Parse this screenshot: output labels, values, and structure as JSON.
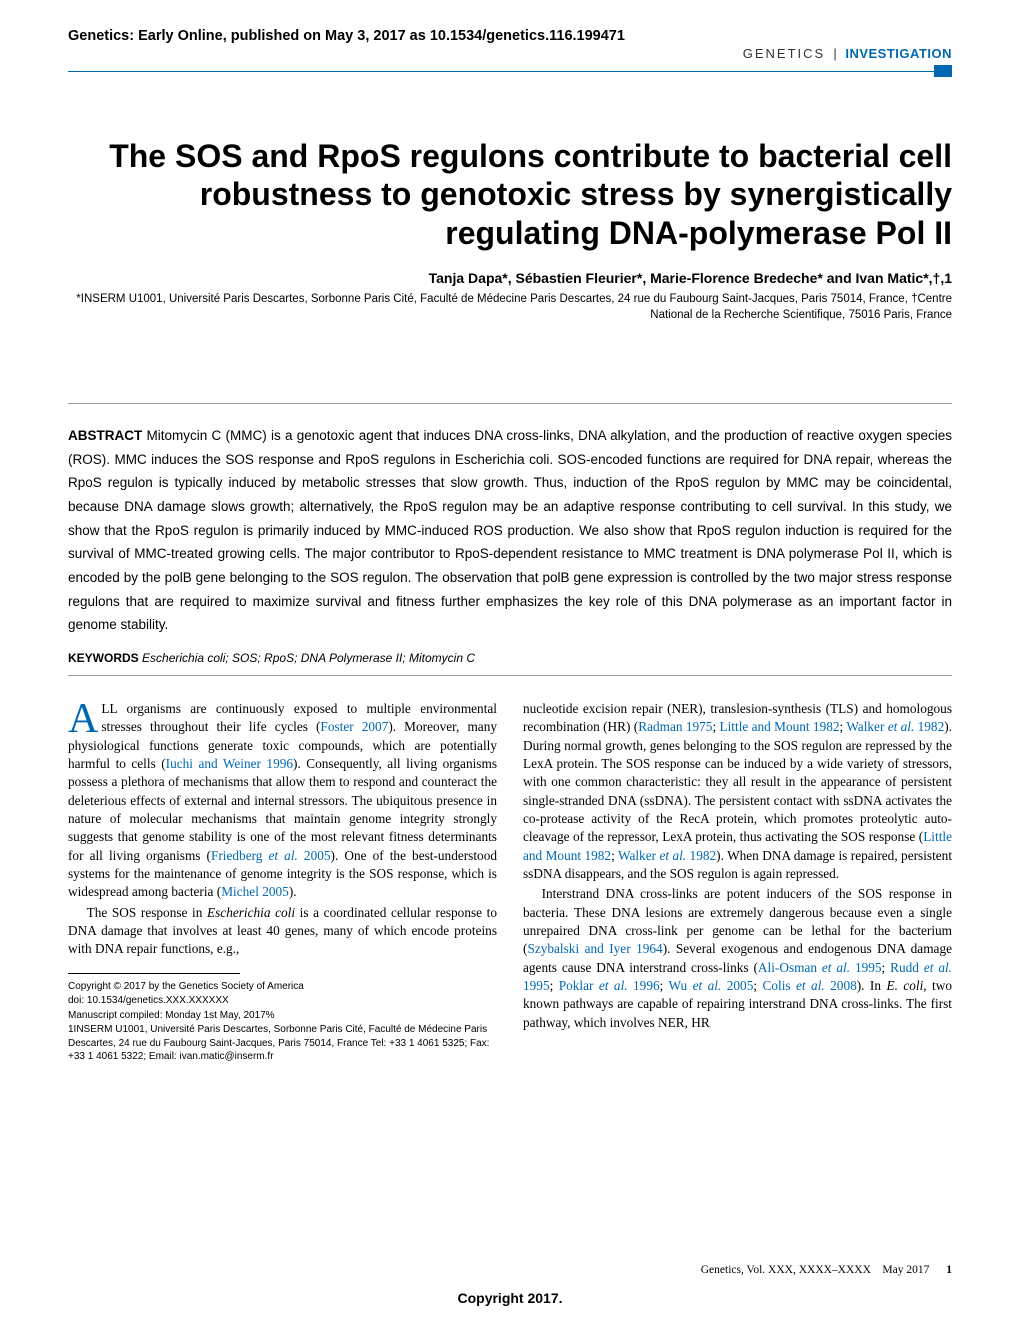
{
  "header": {
    "preprint": "Genetics: Early Online, published on May 3, 2017 as 10.1534/genetics.116.199471",
    "journal": "GENETICS",
    "separator": "|",
    "section": "INVESTIGATION"
  },
  "title": "The SOS and RpoS regulons contribute to bacterial cell robustness to genotoxic stress by synergistically regulating DNA-polymerase Pol II",
  "authors_html": "Tanja Dapa*, Sébastien Fleurier*, Marie-Florence Bredeche* and Ivan Matic*,†,1",
  "affiliations": "*INSERM U1001, Université Paris Descartes, Sorbonne Paris Cité, Faculté de Médecine Paris Descartes, 24 rue du Faubourg Saint-Jacques, Paris 75014, France, †Centre National de la Recherche Scientifique, 75016 Paris, France",
  "abstract": {
    "label": "ABSTRACT",
    "text": "Mitomycin C (MMC) is a genotoxic agent that induces DNA cross-links, DNA alkylation, and the production of reactive oxygen species (ROS). MMC induces the SOS response and RpoS regulons in Escherichia coli. SOS-encoded functions are required for DNA repair, whereas the RpoS regulon is typically induced by metabolic stresses that slow growth. Thus, induction of the RpoS regulon by MMC may be coincidental, because DNA damage slows growth; alternatively, the RpoS regulon may be an adaptive response contributing to cell survival. In this study, we show that the RpoS regulon is primarily induced by MMC-induced ROS production. We also show that RpoS regulon induction is required for the survival of MMC-treated growing cells. The major contributor to RpoS-dependent resistance to MMC treatment is DNA polymerase Pol II, which is encoded by the polB gene belonging to the SOS regulon. The observation that polB gene expression is controlled by the two major stress response regulons that are required to maximize survival and fitness further emphasizes the key role of this DNA polymerase as an important factor in genome stability."
  },
  "keywords": {
    "label": "KEYWORDS",
    "text": "Escherichia coli; SOS; RpoS; DNA Polymerase II; Mitomycin C"
  },
  "body": {
    "col1": {
      "dropcap": "A",
      "p1_rest": "LL organisms are continuously exposed to multiple environmental stresses throughout their life cycles (Foster 2007). Moreover, many physiological functions generate toxic compounds, which are potentially harmful to cells (Iuchi and Weiner 1996). Consequently, all living organisms possess a plethora of mechanisms that allow them to respond and counteract the deleterious effects of external and internal stressors. The ubiquitous presence in nature of molecular mechanisms that maintain genome integrity strongly suggests that genome stability is one of the most relevant fitness determinants for all living organisms (Friedberg et al. 2005). One of the best-understood systems for the maintenance of genome integrity is the SOS response, which is widespread among bacteria (Michel 2005).",
      "p2": "The SOS response in Escherichia coli is a coordinated cellular response to DNA damage that involves at least 40 genes, many of which encode proteins with DNA repair functions, e.g.,"
    },
    "col2": {
      "p1": "nucleotide excision repair (NER), translesion-synthesis (TLS) and homologous recombination (HR) (Radman 1975; Little and Mount 1982; Walker et al. 1982). During normal growth, genes belonging to the SOS regulon are repressed by the LexA protein. The SOS response can be induced by a wide variety of stressors, with one common characteristic: they all result in the appearance of persistent single-stranded DNA (ssDNA). The persistent contact with ssDNA activates the co-protease activity of the RecA protein, which promotes proteolytic auto-cleavage of the repressor, LexA protein, thus activating the SOS response (Little and Mount 1982; Walker et al. 1982). When DNA damage is repaired, persistent ssDNA disappears, and the SOS regulon is again repressed.",
      "p2": "Interstrand DNA cross-links are potent inducers of the SOS response in bacteria. These DNA lesions are extremely dangerous because even a single unrepaired DNA cross-link per genome can be lethal for the bacterium (Szybalski and Iyer 1964). Several exogenous and endogenous DNA damage agents cause DNA interstrand cross-links (Ali-Osman et al. 1995; Rudd et al. 1995; Poklar et al. 1996; Wu et al. 2005; Colis et al. 2008). In E. coli, two known pathways are capable of repairing interstrand DNA cross-links. The first pathway, which involves NER, HR"
    }
  },
  "footnotes": {
    "copyright": "Copyright © 2017 by the Genetics Society of America",
    "doi": "doi: 10.1534/genetics.XXX.XXXXXX",
    "compiled": "Manuscript compiled: Monday 1st May, 2017%",
    "corresponding": "1INSERM U1001, Université Paris Descartes, Sorbonne Paris Cité, Faculté de Médecine Paris Descartes, 24 rue du Faubourg Saint-Jacques, Paris 75014, France Tel: +33 1 4061 5325; Fax: +33 1 4061 5322; Email: ivan.matic@inserm.fr"
  },
  "footer": {
    "citation": "Genetics, Vol. XXX, XXXX–XXXX",
    "date": "May 2017",
    "page": "1"
  },
  "copyright_stamp": "Copyright 2017.",
  "colors": {
    "accent": "#0068b3",
    "text": "#000000",
    "background": "#ffffff",
    "rule_grey": "#999999"
  },
  "typography": {
    "title_fontsize": 32,
    "body_fontsize": 13.3,
    "abstract_fontsize": 13.5,
    "footnote_fontsize": 10
  }
}
